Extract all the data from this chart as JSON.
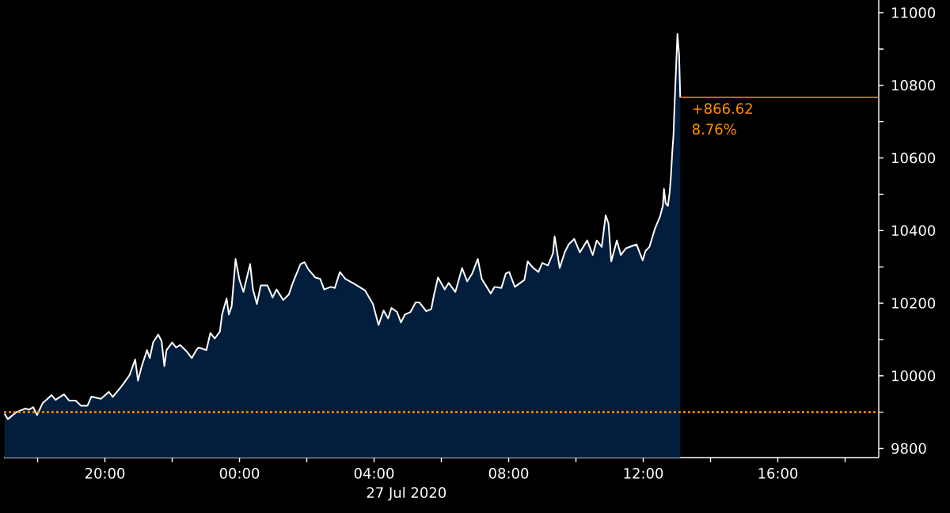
{
  "chart_data": {
    "type": "area",
    "xlabel": "27 Jul 2020",
    "xlim": [
      "2020-07-26T17:00",
      "2020-07-27T19:00"
    ],
    "ylim": [
      9775,
      11035
    ],
    "xticks": [
      {
        "value": "2020-07-26T18:00",
        "label": null
      },
      {
        "value": "2020-07-26T20:00",
        "label": "20:00"
      },
      {
        "value": "2020-07-26T22:00",
        "label": null
      },
      {
        "value": "2020-07-27T00:00",
        "label": "00:00"
      },
      {
        "value": "2020-07-27T02:00",
        "label": null
      },
      {
        "value": "2020-07-27T04:00",
        "label": "04:00"
      },
      {
        "value": "2020-07-27T06:00",
        "label": null
      },
      {
        "value": "2020-07-27T08:00",
        "label": "08:00"
      },
      {
        "value": "2020-07-27T10:00",
        "label": null
      },
      {
        "value": "2020-07-27T12:00",
        "label": "12:00"
      },
      {
        "value": "2020-07-27T14:00",
        "label": null
      },
      {
        "value": "2020-07-27T16:00",
        "label": "16:00"
      },
      {
        "value": "2020-07-27T18:00",
        "label": null
      }
    ],
    "yticks": [
      9800,
      {
        "value": 9900,
        "label": null
      },
      10000,
      {
        "value": 10100,
        "label": null
      },
      10200,
      {
        "value": 10300,
        "label": null
      },
      10400,
      {
        "value": 10500,
        "label": null
      },
      10600,
      {
        "value": 10700,
        "label": null
      },
      10800,
      {
        "value": 10900,
        "label": null
      },
      11000
    ],
    "series": [
      {
        "color": "#021e3c",
        "x": [
          "2020-07-26T17:01",
          "2020-07-26T17:07",
          "2020-07-26T17:22",
          "2020-07-26T17:38",
          "2020-07-26T17:45",
          "2020-07-26T17:52",
          "2020-07-26T17:59",
          "2020-07-26T18:09",
          "2020-07-26T18:25",
          "2020-07-26T18:32",
          "2020-07-26T18:47",
          "2020-07-26T18:56",
          "2020-07-26T19:08",
          "2020-07-26T19:17",
          "2020-07-26T19:29",
          "2020-07-26T19:36",
          "2020-07-26T19:53",
          "2020-07-26T20:07",
          "2020-07-26T20:14",
          "2020-07-26T20:30",
          "2020-07-26T20:44",
          "2020-07-26T20:54",
          "2020-07-26T20:59",
          "2020-07-26T21:05",
          "2020-07-26T21:15",
          "2020-07-26T21:20",
          "2020-07-26T21:26",
          "2020-07-26T21:35",
          "2020-07-26T21:41",
          "2020-07-26T21:46",
          "2020-07-26T21:50",
          "2020-07-26T22:00",
          "2020-07-26T22:07",
          "2020-07-26T22:14",
          "2020-07-26T22:26",
          "2020-07-26T22:35",
          "2020-07-26T22:43",
          "2020-07-26T22:47",
          "2020-07-26T23:01",
          "2020-07-26T23:08",
          "2020-07-26T23:16",
          "2020-07-26T23:25",
          "2020-07-26T23:29",
          "2020-07-26T23:37",
          "2020-07-26T23:41",
          "2020-07-26T23:46",
          "2020-07-26T23:53",
          "2020-07-27T00:00",
          "2020-07-27T00:07",
          "2020-07-27T00:19",
          "2020-07-27T00:24",
          "2020-07-27T00:31",
          "2020-07-27T00:38",
          "2020-07-27T00:50",
          "2020-07-27T00:59",
          "2020-07-27T01:06",
          "2020-07-27T01:18",
          "2020-07-27T01:28",
          "2020-07-27T01:35",
          "2020-07-27T01:49",
          "2020-07-27T01:56",
          "2020-07-27T02:03",
          "2020-07-27T02:15",
          "2020-07-27T02:24",
          "2020-07-27T02:31",
          "2020-07-27T02:43",
          "2020-07-27T02:50",
          "2020-07-27T02:59",
          "2020-07-27T03:09",
          "2020-07-27T03:25",
          "2020-07-27T03:44",
          "2020-07-27T03:58",
          "2020-07-27T04:08",
          "2020-07-27T04:17",
          "2020-07-27T04:25",
          "2020-07-27T04:31",
          "2020-07-27T04:41",
          "2020-07-27T04:48",
          "2020-07-27T04:55",
          "2020-07-27T05:05",
          "2020-07-27T05:14",
          "2020-07-27T05:21",
          "2020-07-27T05:33",
          "2020-07-27T05:42",
          "2020-07-27T05:47",
          "2020-07-27T05:54",
          "2020-07-27T06:06",
          "2020-07-27T06:13",
          "2020-07-27T06:25",
          "2020-07-27T06:37",
          "2020-07-27T06:46",
          "2020-07-27T06:55",
          "2020-07-27T07:05",
          "2020-07-27T07:12",
          "2020-07-27T07:28",
          "2020-07-27T07:35",
          "2020-07-27T07:47",
          "2020-07-27T07:55",
          "2020-07-27T08:01",
          "2020-07-27T08:11",
          "2020-07-27T08:28",
          "2020-07-27T08:34",
          "2020-07-27T08:44",
          "2020-07-27T08:53",
          "2020-07-27T09:00",
          "2020-07-27T09:10",
          "2020-07-27T09:19",
          "2020-07-27T09:22",
          "2020-07-27T09:31",
          "2020-07-27T09:40",
          "2020-07-27T09:47",
          "2020-07-27T09:57",
          "2020-07-27T10:07",
          "2020-07-27T10:20",
          "2020-07-27T10:30",
          "2020-07-27T10:37",
          "2020-07-27T10:46",
          "2020-07-27T10:53",
          "2020-07-27T10:58",
          "2020-07-27T11:03",
          "2020-07-27T11:13",
          "2020-07-27T11:20",
          "2020-07-27T11:29",
          "2020-07-27T11:41",
          "2020-07-27T11:48",
          "2020-07-27T11:59",
          "2020-07-27T12:04",
          "2020-07-27T12:11",
          "2020-07-27T12:21",
          "2020-07-27T12:30",
          "2020-07-27T12:35",
          "2020-07-27T12:37",
          "2020-07-27T12:40",
          "2020-07-27T12:44",
          "2020-07-27T12:47",
          "2020-07-27T12:49",
          "2020-07-27T12:52",
          "2020-07-27T12:54",
          "2020-07-27T12:56",
          "2020-07-27T13:01",
          "2020-07-27T13:04",
          "2020-07-27T13:05",
          "2020-07-27T13:06"
        ],
        "values": [
          9896,
          9881,
          9900,
          9910,
          9907,
          9914,
          9892,
          9925,
          9947,
          9934,
          9949,
          9932,
          9932,
          9918,
          9918,
          9943,
          9937,
          9956,
          9942,
          9972,
          10002,
          10045,
          9987,
          10023,
          10071,
          10049,
          10092,
          10114,
          10096,
          10027,
          10071,
          10092,
          10078,
          10085,
          10067,
          10049,
          10071,
          10078,
          10071,
          10118,
          10103,
          10122,
          10169,
          10213,
          10169,
          10191,
          10322,
          10264,
          10231,
          10308,
          10238,
          10198,
          10249,
          10249,
          10216,
          10238,
          10209,
          10224,
          10256,
          10308,
          10313,
          10293,
          10271,
          10267,
          10238,
          10245,
          10242,
          10286,
          10267,
          10253,
          10235,
          10198,
          10140,
          10180,
          10158,
          10187,
          10176,
          10147,
          10169,
          10176,
          10202,
          10202,
          10178,
          10184,
          10224,
          10271,
          10238,
          10256,
          10231,
          10297,
          10260,
          10282,
          10322,
          10267,
          10227,
          10245,
          10242,
          10282,
          10286,
          10245,
          10264,
          10315,
          10297,
          10286,
          10311,
          10304,
          10337,
          10384,
          10297,
          10340,
          10362,
          10377,
          10340,
          10373,
          10333,
          10373,
          10355,
          10442,
          10420,
          10315,
          10373,
          10333,
          10351,
          10358,
          10362,
          10318,
          10344,
          10355,
          10406,
          10439,
          10468,
          10515,
          10475,
          10468,
          10504,
          10541,
          10621,
          10665,
          10752,
          10941,
          10883,
          10825,
          10767
        ]
      },
      {
        "type": "line",
        "color": "#ff8c00",
        "x": [
          "2020-07-27T13:06",
          "2020-07-27T19:00"
        ],
        "values": [
          10767,
          10767
        ]
      }
    ],
    "ref_lines": [
      {
        "axis": "y",
        "value": 9900,
        "color": "#ff8c00",
        "line_style": "dotted"
      }
    ],
    "annotations": [
      {
        "text": "+866.62",
        "x": "2020-07-27T13:06",
        "y": 10767
      },
      {
        "text": "8.76%",
        "x": "2020-07-27T13:06",
        "y": 10767
      }
    ]
  }
}
